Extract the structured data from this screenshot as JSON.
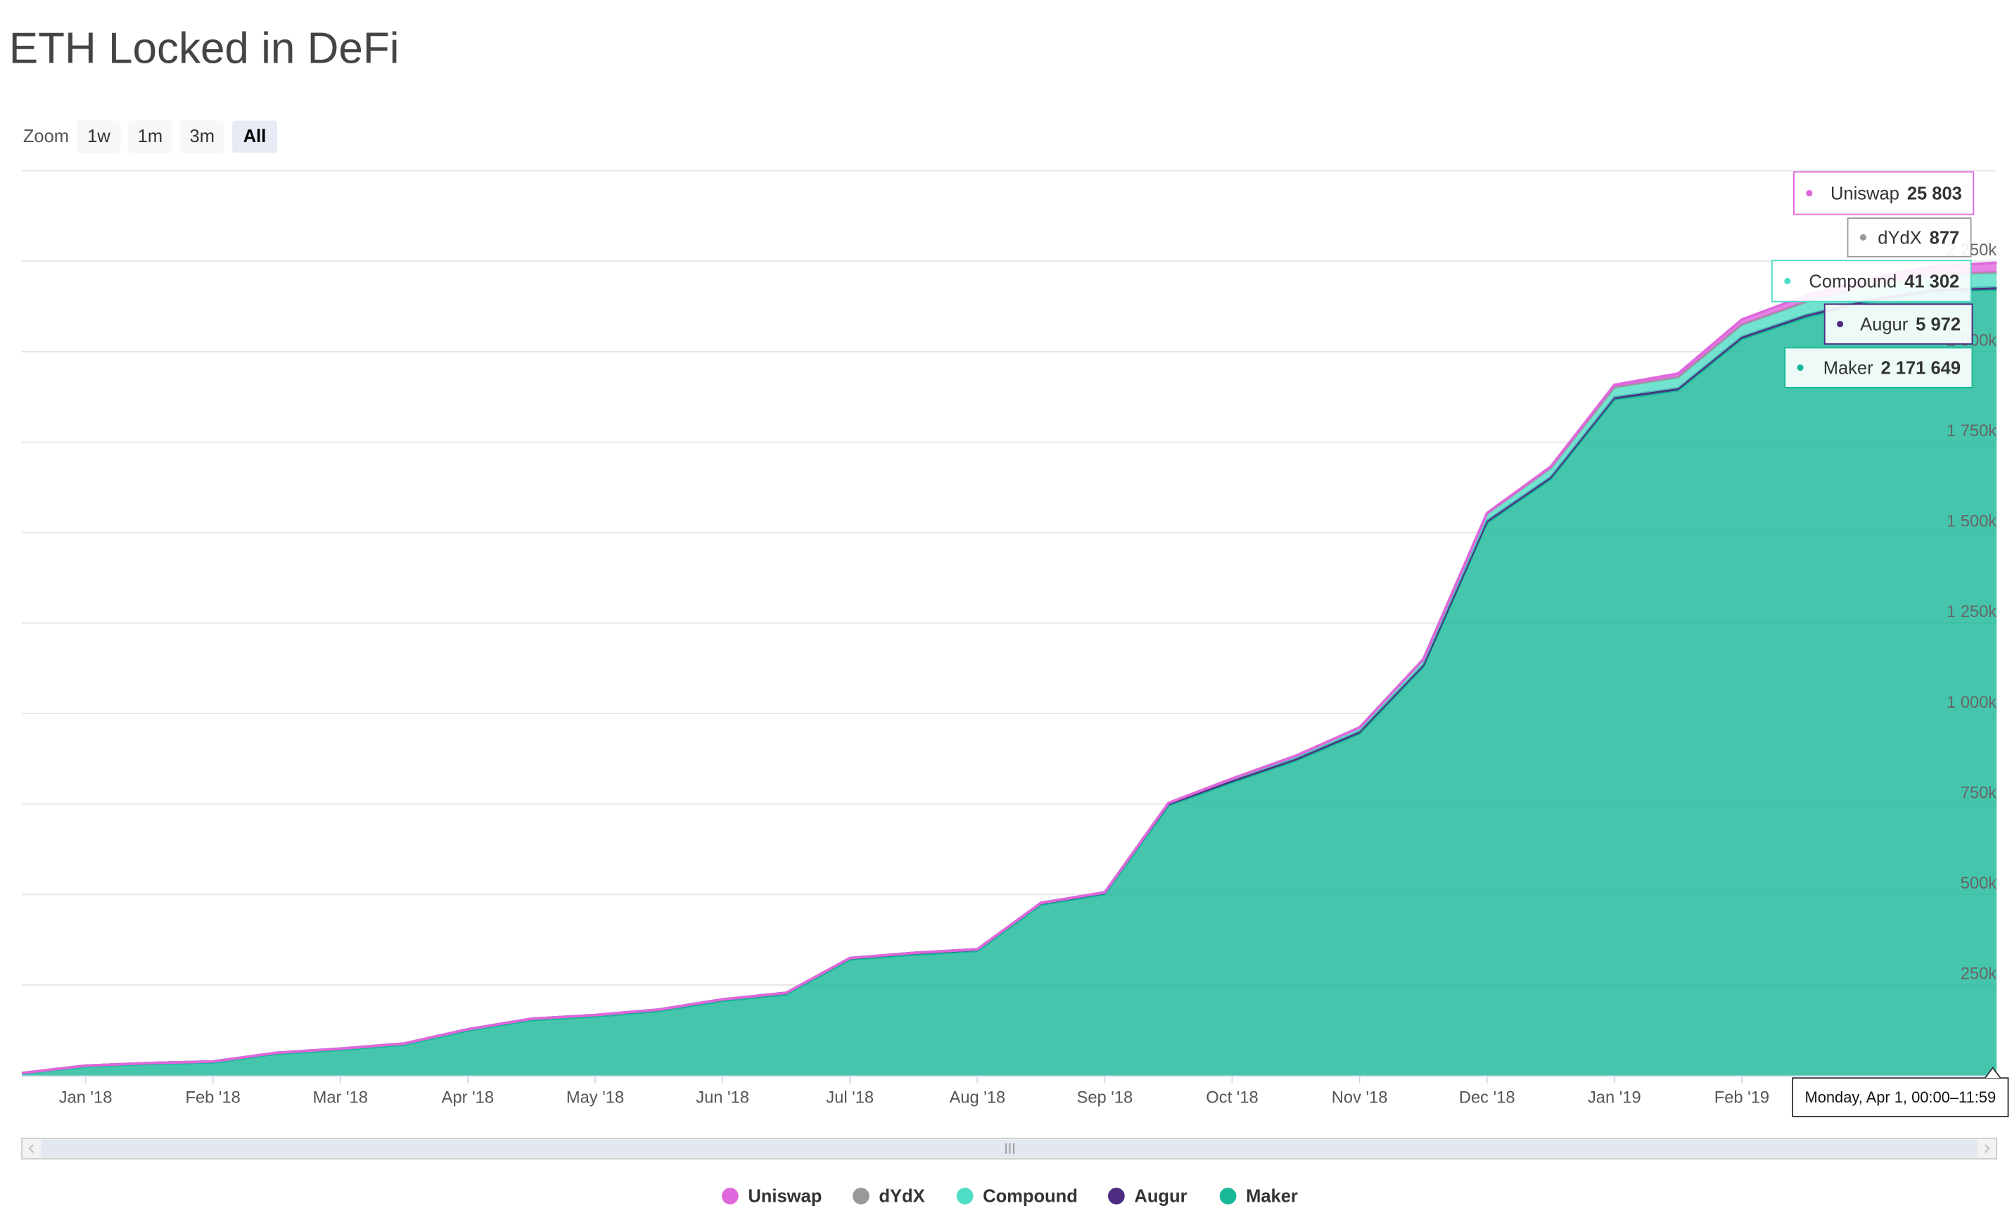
{
  "chart_data": {
    "type": "stacked-area",
    "title": "ETH Locked in DeFi",
    "zoom": {
      "label": "Zoom",
      "buttons": [
        "1w",
        "1m",
        "3m",
        "All"
      ],
      "active": 3
    },
    "categories": [
      null,
      "Jan '18",
      null,
      "Feb '18",
      null,
      "Mar '18",
      null,
      "Apr '18",
      null,
      "May '18",
      null,
      "Jun '18",
      null,
      "Jul '18",
      null,
      "Aug '18",
      null,
      "Sep '18",
      null,
      "Oct '18",
      null,
      "Nov '18",
      null,
      "Dec '18",
      null,
      "Jan '19",
      null,
      "Feb '19",
      null,
      null,
      null,
      null
    ],
    "series": [
      {
        "name": "Uniswap",
        "color": "#e066dd",
        "values": [
          0,
          0,
          0,
          0,
          0,
          0,
          0,
          0,
          0,
          0,
          0,
          0,
          0,
          0,
          0,
          0,
          0,
          0,
          0,
          0,
          0,
          0,
          0,
          1000,
          3000,
          6000,
          9000,
          13000,
          17000,
          20000,
          23000,
          25803
        ],
        "value_labels": [
          null,
          null,
          null,
          null,
          null,
          null,
          null,
          null,
          null,
          null,
          null,
          null,
          null,
          null,
          null,
          null,
          null,
          null,
          null,
          null,
          null,
          null,
          null,
          null,
          null,
          null,
          null,
          null,
          null,
          null,
          null,
          "25 803"
        ]
      },
      {
        "name": "dYdX",
        "color": "#999999",
        "values": [
          0,
          0,
          0,
          0,
          0,
          0,
          0,
          0,
          0,
          0,
          0,
          0,
          0,
          0,
          0,
          0,
          0,
          0,
          0,
          100,
          200,
          300,
          400,
          500,
          600,
          700,
          750,
          800,
          830,
          850,
          870,
          877
        ],
        "value_labels": [
          null,
          null,
          null,
          null,
          null,
          null,
          null,
          null,
          null,
          null,
          null,
          null,
          null,
          null,
          null,
          null,
          null,
          null,
          null,
          null,
          null,
          null,
          null,
          null,
          null,
          null,
          null,
          null,
          null,
          null,
          null,
          "877"
        ]
      },
      {
        "name": "Compound",
        "color": "#4fdcc4",
        "values": [
          0,
          0,
          0,
          0,
          0,
          0,
          0,
          0,
          0,
          0,
          0,
          0,
          0,
          0,
          0,
          0,
          0,
          0,
          2000,
          5000,
          8000,
          11000,
          15000,
          20000,
          25000,
          28000,
          31000,
          34000,
          36000,
          38000,
          40000,
          41302
        ],
        "value_labels": [
          null,
          null,
          null,
          null,
          null,
          null,
          null,
          null,
          null,
          null,
          null,
          null,
          null,
          null,
          null,
          null,
          null,
          null,
          null,
          null,
          null,
          null,
          null,
          null,
          null,
          null,
          null,
          null,
          null,
          null,
          null,
          "41 302"
        ]
      },
      {
        "name": "Augur",
        "color": "#4b2c80",
        "values": [
          1500,
          2000,
          2200,
          2500,
          2700,
          3000,
          3200,
          3500,
          3700,
          3900,
          4000,
          4200,
          4300,
          4500,
          4600,
          4700,
          4800,
          4900,
          5000,
          5100,
          5200,
          5300,
          5400,
          5500,
          5600,
          5700,
          5750,
          5800,
          5850,
          5900,
          5950,
          5972
        ],
        "value_labels": [
          null,
          null,
          null,
          null,
          null,
          null,
          null,
          null,
          null,
          null,
          null,
          null,
          null,
          null,
          null,
          null,
          null,
          null,
          null,
          null,
          null,
          null,
          null,
          null,
          null,
          null,
          null,
          null,
          null,
          null,
          null,
          "5 972"
        ]
      },
      {
        "name": "Maker",
        "color": "#17b897",
        "values": [
          5000,
          25000,
          32000,
          36000,
          60000,
          71000,
          85000,
          124000,
          153000,
          163000,
          178000,
          206000,
          224000,
          320000,
          334000,
          344000,
          472000,
          501000,
          746000,
          810000,
          870000,
          945000,
          1129000,
          1527000,
          1648000,
          1868000,
          1893000,
          2035000,
          2095000,
          2138000,
          2166000,
          2171649
        ],
        "value_labels": [
          null,
          null,
          null,
          null,
          null,
          null,
          null,
          null,
          null,
          null,
          null,
          null,
          null,
          null,
          null,
          null,
          null,
          null,
          null,
          null,
          null,
          null,
          null,
          null,
          null,
          null,
          null,
          null,
          null,
          null,
          null,
          "2 171 649"
        ]
      }
    ],
    "ylim": [
      0,
      2500000
    ],
    "yticks": [
      {
        "value": 250000,
        "label": "250k"
      },
      {
        "value": 500000,
        "label": "500k"
      },
      {
        "value": 750000,
        "label": "750k"
      },
      {
        "value": 1000000,
        "label": "1 000k"
      },
      {
        "value": 1250000,
        "label": "1 250k"
      },
      {
        "value": 1500000,
        "label": "1 500k"
      },
      {
        "value": 1750000,
        "label": "1 750k"
      },
      {
        "value": 2000000,
        "label": "2 000k"
      },
      {
        "value": 2250000,
        "label": "2 250k"
      }
    ],
    "grid": true,
    "tooltip": {
      "date": "Monday, Apr 1, 00:00–11:59"
    },
    "legend": "bottom"
  }
}
